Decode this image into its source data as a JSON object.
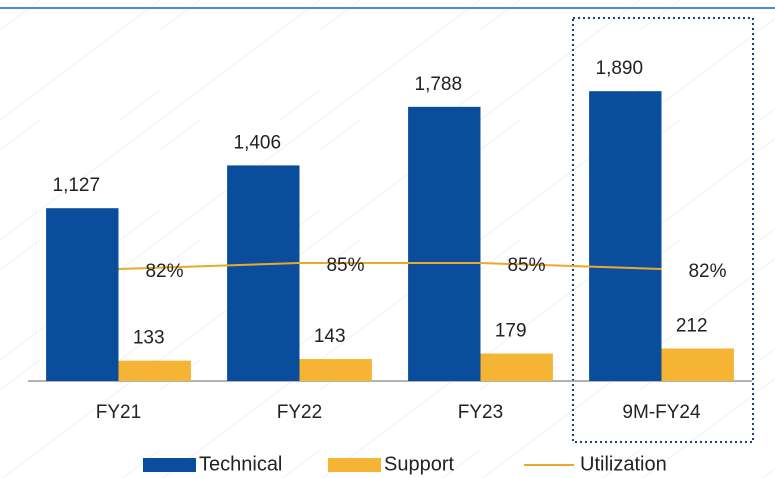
{
  "chart_data": {
    "type": "bar",
    "categories": [
      "FY21",
      "FY22",
      "FY23",
      "9M-FY24"
    ],
    "series": [
      {
        "name": "Technical",
        "color": "#0a4d9c",
        "values": [
          1127,
          1406,
          1788,
          1890
        ],
        "value_labels": [
          "1,127",
          "1,406",
          "1,788",
          "1,890"
        ]
      },
      {
        "name": "Support",
        "color": "#f5b434",
        "values": [
          133,
          143,
          179,
          212
        ]
      },
      {
        "name": "Utilization",
        "type": "line",
        "axis": "y2",
        "color": "#e9a92b",
        "values": [
          82,
          85,
          85,
          82
        ],
        "value_labels": [
          "82%",
          "85%",
          "85%",
          "82%"
        ]
      }
    ],
    "ylim": [
      0,
      2400
    ],
    "y2lim": [
      26,
      210
    ],
    "legend": "bottom"
  }
}
